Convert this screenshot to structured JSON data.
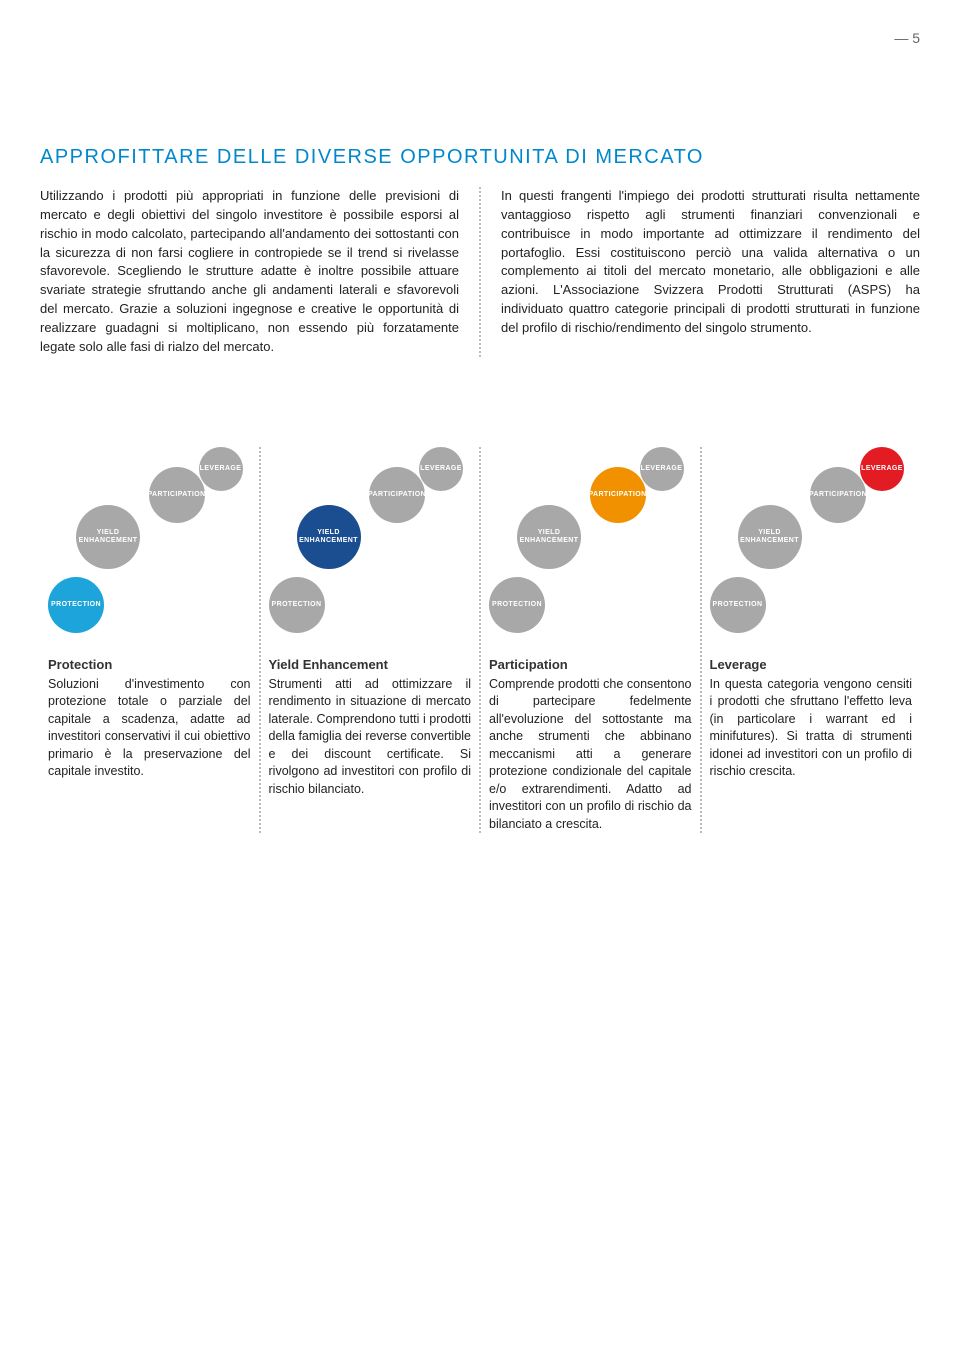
{
  "page_number": "5",
  "title": "APPROFITTARE DELLE DIVERSE OPPORTUNITA DI MERCATO",
  "intro": {
    "left": "Utilizzando i prodotti più appropriati in funzione delle previsioni di mercato e degli obiettivi del singolo investitore è possibile esporsi al rischio in modo calcolato, partecipando all'andamento dei sottostanti con la sicurezza di non farsi cogliere in contropiede se il trend si rivelasse sfavorevole.\nScegliendo le strutture adatte è inoltre possibile attuare svariate strategie sfruttando anche gli andamenti laterali e sfavorevoli del mercato. Grazie a soluzioni ingegnose e creative le opportunità di realizzare guadagni si moltiplicano, non essendo più forzatamente legate solo alle fasi di rialzo del mercato.",
    "right": "In questi frangenti l'impiego dei prodotti strutturati risulta nettamente vantaggioso rispetto agli strumenti finanziari convenzionali e contribuisce in modo importante ad ottimizzare il rendimento del portafoglio. Essi costituiscono perciò una valida alternativa o un complemento ai titoli del mercato monetario, alle obbligazioni e alle azioni.\nL'Associazione Svizzera Prodotti Strutturati (ASPS) ha individuato quattro categorie principali di prodotti strutturati in funzione del profilo di rischio/rendimento del singolo strumento."
  },
  "colors": {
    "inactive": "#a8a8a8",
    "protection": "#1da5db",
    "yield": "#1b4e91",
    "participation": "#f29100",
    "leverage": "#e31b23"
  },
  "bubble_labels": {
    "leverage": "LEVERAGE",
    "participation": "PARTICIPATION",
    "yield": "YIELD ENHANCEMENT",
    "protection": "PROTECTION"
  },
  "categories": [
    {
      "highlight": "protection",
      "title": "Protection",
      "body": "Soluzioni d'investimento con protezione totale o parziale del capitale a scadenza, adatte ad investitori conservativi il cui obiettivo primario è la preservazione del capitale investito."
    },
    {
      "highlight": "yield",
      "title": "Yield Enhancement",
      "body": "Strumenti atti ad ottimizzare il rendimento in situazione di mercato laterale. Comprendono tutti i prodotti della famiglia dei reverse convertible e dei discount certificate. Si rivolgono ad investitori con profilo di rischio bilanciato."
    },
    {
      "highlight": "participation",
      "title": "Participation",
      "body": "Comprende prodotti che consentono di partecipare fedelmente all'evoluzione del sottostante ma anche strumenti che abbinano meccanismi atti a generare protezione condizionale del capitale e/o extrarendimenti. Adatto ad investitori con un profilo di rischio da bilanciato a crescita."
    },
    {
      "highlight": "leverage",
      "title": "Leverage",
      "body": "In questa categoria vengono censiti i prodotti che sfruttano l'effetto leva (in particolare i warrant ed i minifutures). Si tratta di strumenti idonei ad investitori con un profilo di rischio crescita."
    }
  ]
}
